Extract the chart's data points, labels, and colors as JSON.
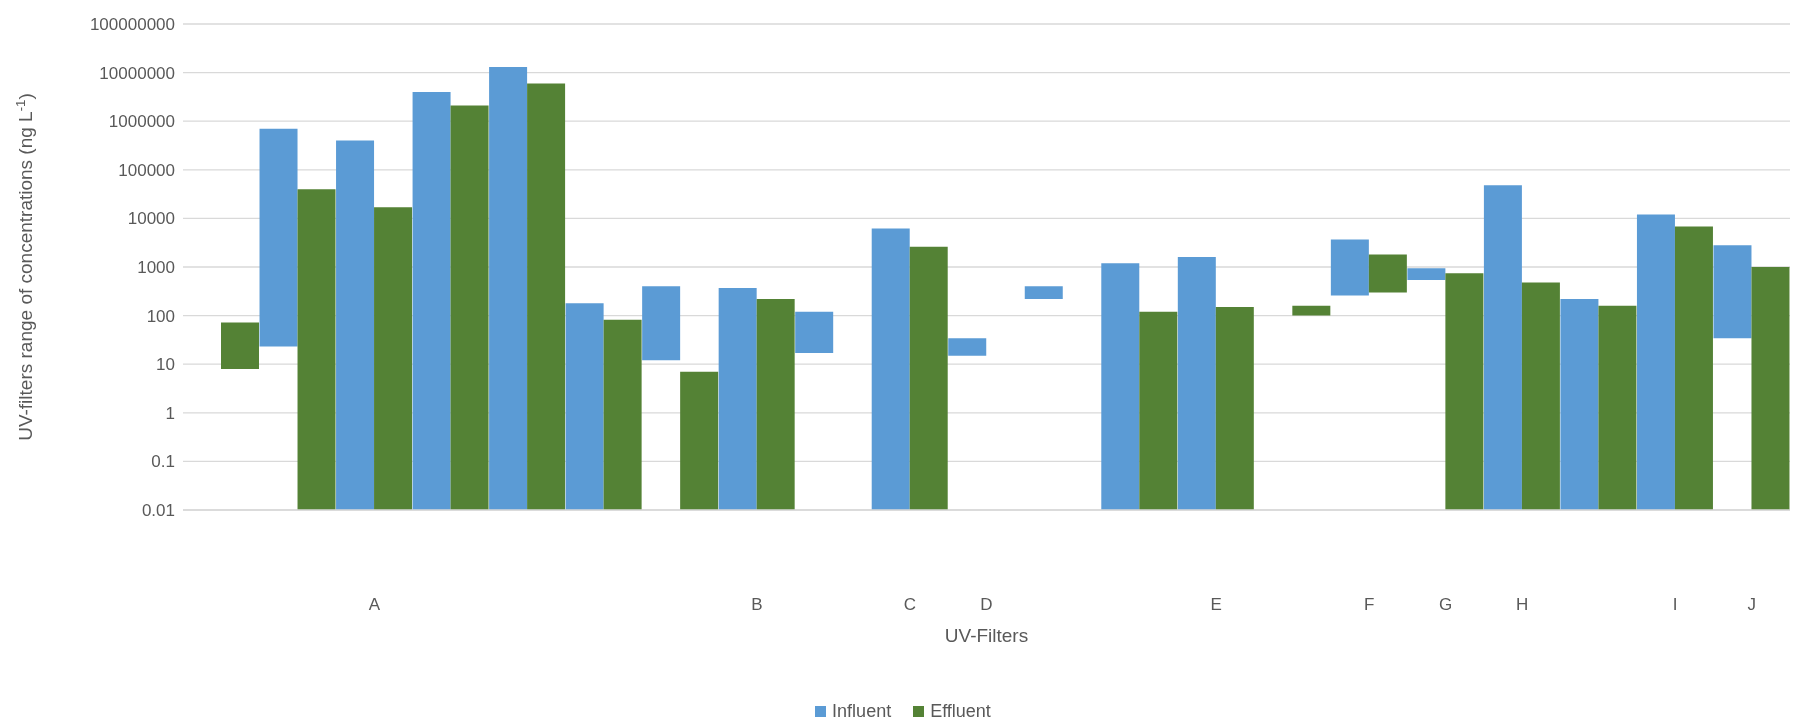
{
  "chart_data": {
    "type": "bar",
    "xlabel": "UV-Filters",
    "ylabel": "UV-filters range of concentrations  (ng L$^{-1}$)",
    "categories": [
      null,
      null,
      "A",
      null,
      null,
      null,
      null,
      "B",
      null,
      "C",
      "D",
      null,
      null,
      "E",
      null,
      "F",
      "G",
      "H",
      null,
      "I",
      "J"
    ],
    "series": [
      {
        "name": "Influent",
        "color": "#5b9bd5",
        "values": [
          null,
          699977,
          400000,
          4000000,
          13000000,
          180,
          388,
          370,
          103,
          6200,
          19,
          180,
          1200,
          1600,
          null,
          3440,
          400,
          48000,
          220,
          12000,
          2766
        ],
        "base": [
          null,
          23,
          null,
          null,
          null,
          null,
          12,
          null,
          17,
          null,
          15,
          220,
          null,
          null,
          null,
          260,
          540,
          null,
          null,
          null,
          34
        ]
      },
      {
        "name": "Effluent",
        "color": "#548235",
        "values": [
          64,
          40000,
          17000,
          2100000,
          6000000,
          82,
          7,
          220,
          null,
          2600,
          null,
          null,
          120,
          150,
          60,
          1500,
          740,
          480,
          160,
          6800,
          1000
        ],
        "base": [
          8,
          null,
          null,
          null,
          null,
          null,
          null,
          null,
          null,
          null,
          null,
          null,
          null,
          null,
          100,
          300,
          null,
          null,
          null,
          null,
          null
        ]
      }
    ],
    "log": "y",
    "ylim": [
      0.01,
      100000000
    ],
    "yticks": [
      0.01,
      0.1,
      1,
      10,
      100,
      1000,
      10000,
      100000,
      1000000,
      10000000,
      100000000
    ],
    "grid": "y",
    "legend": "bottom"
  }
}
